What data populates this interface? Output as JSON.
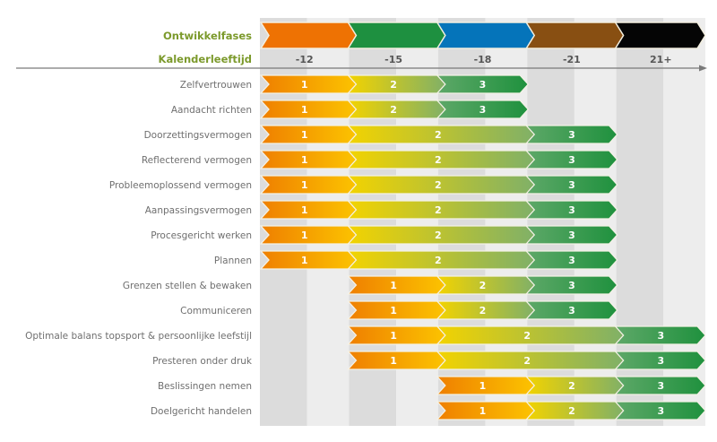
{
  "chart_data": {
    "type": "table",
    "title": "",
    "header_labels": {
      "phases": "Ontwikkelfases",
      "age": "Kalenderleeftijd"
    },
    "phases": [
      {
        "age_label": "-12",
        "color": "#ee7203"
      },
      {
        "age_label": "-15",
        "color": "#1e9040"
      },
      {
        "age_label": "-18",
        "color": "#0574ba"
      },
      {
        "age_label": "-21",
        "color": "#884f12"
      },
      {
        "age_label": "21+",
        "color": "#050505"
      }
    ],
    "stage_colors": {
      "1": [
        "#ef7f00",
        "#fcc400"
      ],
      "2": [
        "#f3d300",
        "#7fb068"
      ],
      "3": [
        "#5ea868",
        "#1f913e"
      ]
    },
    "rows": [
      {
        "label": "Zelfvertrouwen",
        "stages": [
          {
            "n": "1",
            "from": 0,
            "to": 1
          },
          {
            "n": "2",
            "from": 1,
            "to": 2
          },
          {
            "n": "3",
            "from": 2,
            "to": 3
          }
        ]
      },
      {
        "label": "Aandacht richten",
        "stages": [
          {
            "n": "1",
            "from": 0,
            "to": 1
          },
          {
            "n": "2",
            "from": 1,
            "to": 2
          },
          {
            "n": "3",
            "from": 2,
            "to": 3
          }
        ]
      },
      {
        "label": "Doorzettingsvermogen",
        "stages": [
          {
            "n": "1",
            "from": 0,
            "to": 1
          },
          {
            "n": "2",
            "from": 1,
            "to": 3
          },
          {
            "n": "3",
            "from": 3,
            "to": 4
          }
        ]
      },
      {
        "label": "Reflecterend vermogen",
        "stages": [
          {
            "n": "1",
            "from": 0,
            "to": 1
          },
          {
            "n": "2",
            "from": 1,
            "to": 3
          },
          {
            "n": "3",
            "from": 3,
            "to": 4
          }
        ]
      },
      {
        "label": "Probleemoplossend vermogen",
        "stages": [
          {
            "n": "1",
            "from": 0,
            "to": 1
          },
          {
            "n": "2",
            "from": 1,
            "to": 3
          },
          {
            "n": "3",
            "from": 3,
            "to": 4
          }
        ]
      },
      {
        "label": "Aanpassingsvermogen",
        "stages": [
          {
            "n": "1",
            "from": 0,
            "to": 1
          },
          {
            "n": "2",
            "from": 1,
            "to": 3
          },
          {
            "n": "3",
            "from": 3,
            "to": 4
          }
        ]
      },
      {
        "label": "Procesgericht werken",
        "stages": [
          {
            "n": "1",
            "from": 0,
            "to": 1
          },
          {
            "n": "2",
            "from": 1,
            "to": 3
          },
          {
            "n": "3",
            "from": 3,
            "to": 4
          }
        ]
      },
      {
        "label": "Plannen",
        "stages": [
          {
            "n": "1",
            "from": 0,
            "to": 1
          },
          {
            "n": "2",
            "from": 1,
            "to": 3
          },
          {
            "n": "3",
            "from": 3,
            "to": 4
          }
        ]
      },
      {
        "label": "Grenzen stellen & bewaken",
        "stages": [
          {
            "n": "1",
            "from": 1,
            "to": 2
          },
          {
            "n": "2",
            "from": 2,
            "to": 3
          },
          {
            "n": "3",
            "from": 3,
            "to": 4
          }
        ]
      },
      {
        "label": "Communiceren",
        "stages": [
          {
            "n": "1",
            "from": 1,
            "to": 2
          },
          {
            "n": "2",
            "from": 2,
            "to": 3
          },
          {
            "n": "3",
            "from": 3,
            "to": 4
          }
        ]
      },
      {
        "label": "Optimale balans topsport & persoonlijke leefstijl",
        "stages": [
          {
            "n": "1",
            "from": 1,
            "to": 2
          },
          {
            "n": "2",
            "from": 2,
            "to": 4
          },
          {
            "n": "3",
            "from": 4,
            "to": 5
          }
        ]
      },
      {
        "label": "Presteren onder druk",
        "stages": [
          {
            "n": "1",
            "from": 1,
            "to": 2
          },
          {
            "n": "2",
            "from": 2,
            "to": 4
          },
          {
            "n": "3",
            "from": 4,
            "to": 5
          }
        ]
      },
      {
        "label": "Beslissingen nemen",
        "stages": [
          {
            "n": "1",
            "from": 2,
            "to": 3
          },
          {
            "n": "2",
            "from": 3,
            "to": 4
          },
          {
            "n": "3",
            "from": 4,
            "to": 5
          }
        ]
      },
      {
        "label": "Doelgericht handelen",
        "stages": [
          {
            "n": "1",
            "from": 2,
            "to": 3
          },
          {
            "n": "2",
            "from": 3,
            "to": 4
          },
          {
            "n": "3",
            "from": 4,
            "to": 5
          }
        ]
      }
    ]
  }
}
